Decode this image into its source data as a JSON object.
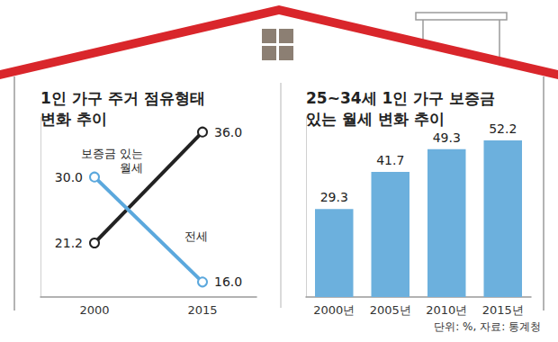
{
  "chart_data": [
    {
      "type": "line",
      "title": "1인 가구 주거 점유형태 변화 추이",
      "categories": [
        "2000",
        "2015"
      ],
      "series": [
        {
          "name": "보증금 있는 월세",
          "color": "#222222",
          "values": [
            21.2,
            36.0
          ],
          "value_labels": [
            "21.2",
            "36.0"
          ]
        },
        {
          "name": "전세",
          "color": "#5ba8dd",
          "values": [
            30.0,
            16.0
          ],
          "value_labels": [
            "30.0",
            "16.0"
          ]
        }
      ],
      "ylim": [
        14,
        38
      ],
      "marker": "circle",
      "data_labels": true,
      "tick_labels": "x",
      "grid": false
    },
    {
      "type": "bar",
      "title": "25~34세 1인 가구 보증금 있는 월세 변화 추이",
      "categories": [
        "2000년",
        "2005년",
        "2010년",
        "2015년"
      ],
      "values": [
        29.3,
        41.7,
        49.3,
        52.2
      ],
      "color": "#6cb0dd",
      "ylim": [
        0,
        60
      ],
      "data_labels": true,
      "tick_labels": "x",
      "grid": false
    }
  ],
  "footer": "단위: %, 자료: 통계청"
}
